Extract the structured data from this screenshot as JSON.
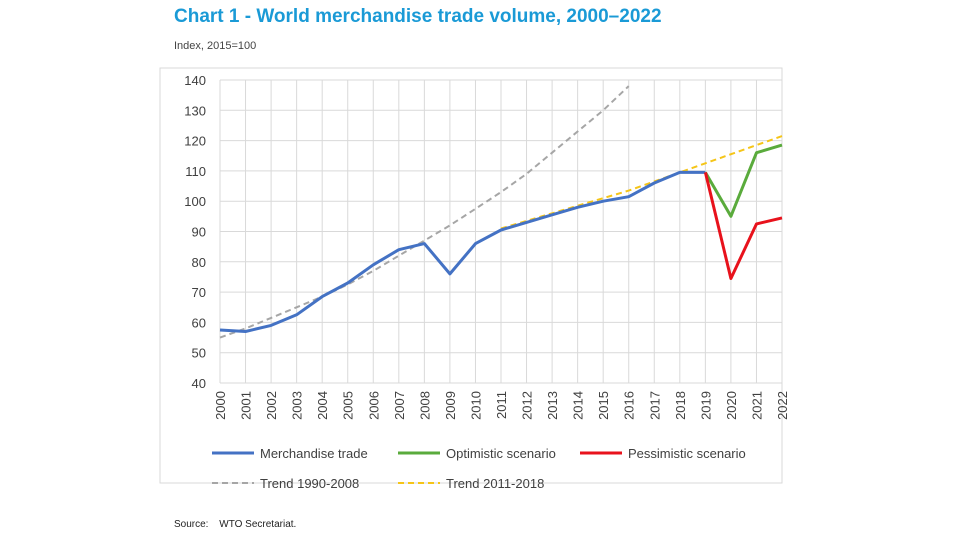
{
  "chart_data": {
    "type": "line",
    "title": "Chart 1 - World merchandise trade volume, 2000–2022",
    "subtitle": "Index, 2015=100",
    "source_label": "Source:",
    "source_text": "WTO Secretariat.",
    "xlabel": "",
    "ylabel": "",
    "ylim": [
      40,
      140
    ],
    "y_ticks": [
      40,
      50,
      60,
      70,
      80,
      90,
      100,
      110,
      120,
      130,
      140
    ],
    "categories": [
      "2000",
      "2001",
      "2002",
      "2003",
      "2004",
      "2005",
      "2006",
      "2007",
      "2008",
      "2009",
      "2010",
      "2011",
      "2012",
      "2013",
      "2014",
      "2015",
      "2016",
      "2017",
      "2018",
      "2019",
      "2020",
      "2021",
      "2022"
    ],
    "series": [
      {
        "name": "Merchandise trade",
        "color": "#4472c4",
        "style": "solid",
        "x": [
          2000,
          2001,
          2002,
          2003,
          2004,
          2005,
          2006,
          2007,
          2008,
          2009,
          2010,
          2011,
          2012,
          2013,
          2014,
          2015,
          2016,
          2017,
          2018,
          2019
        ],
        "values": [
          57.5,
          57,
          59,
          62.5,
          68.5,
          73,
          79,
          84,
          86,
          76,
          86,
          90.5,
          93,
          95.5,
          98,
          100,
          101.5,
          106,
          109.5,
          109.5
        ]
      },
      {
        "name": "Optimistic scenario",
        "color": "#5aab3c",
        "style": "solid",
        "x": [
          2019,
          2020,
          2021,
          2022
        ],
        "values": [
          109.5,
          95,
          116,
          118.5
        ]
      },
      {
        "name": "Pessimistic scenario",
        "color": "#e8121c",
        "style": "solid",
        "x": [
          2019,
          2020,
          2021,
          2022
        ],
        "values": [
          109.5,
          74.5,
          92.5,
          94.5
        ]
      },
      {
        "name": "Trend 1990-2008",
        "color": "#a6a6a6",
        "style": "dashed",
        "x": [
          2000,
          2001,
          2002,
          2003,
          2004,
          2005,
          2006,
          2007,
          2008,
          2009,
          2010,
          2011,
          2012,
          2013,
          2014,
          2015,
          2016
        ],
        "values": [
          55,
          58,
          61.5,
          65,
          68.5,
          72.5,
          77,
          82,
          87,
          92,
          97.5,
          103,
          109,
          116,
          123,
          130,
          138
        ]
      },
      {
        "name": "Trend 2011-2018",
        "color": "#f5c518",
        "style": "dashed",
        "x": [
          2011,
          2012,
          2013,
          2014,
          2015,
          2016,
          2017,
          2018,
          2019,
          2020,
          2021,
          2022
        ],
        "values": [
          91,
          93.5,
          96,
          98.5,
          101,
          103.5,
          106.5,
          109.5,
          112.5,
          115.5,
          118.5,
          121.5
        ]
      }
    ],
    "legend": {
      "placement": "bottom",
      "rows": [
        [
          "Merchandise trade",
          "Optimistic scenario",
          "Pessimistic scenario"
        ],
        [
          "Trend 1990-2008",
          "Trend 2011-2018"
        ]
      ]
    },
    "grid": true
  }
}
